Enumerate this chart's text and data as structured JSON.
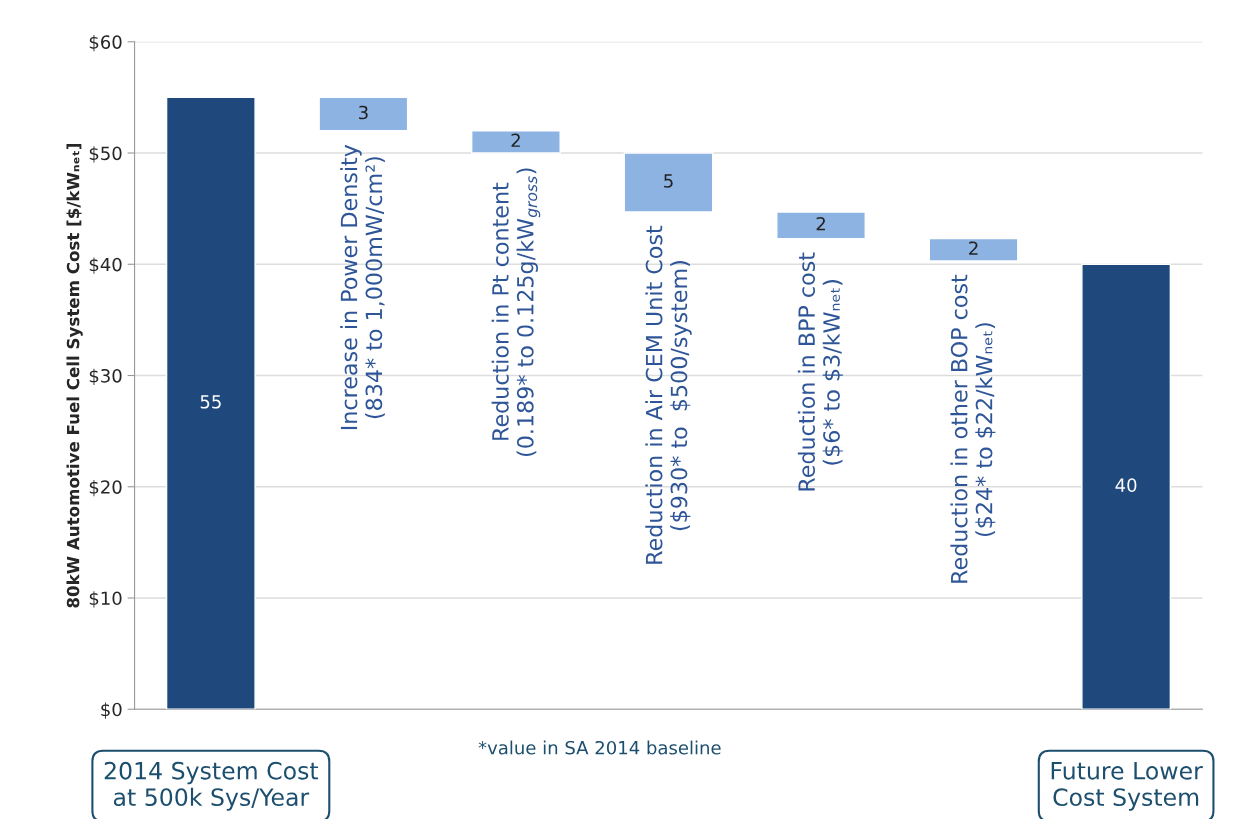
{
  "chart_data": {
    "type": "bar",
    "ylabel": "80kW Automotive Fuel Cell System Cost [$/kWₙₑₜ]",
    "categories": [
      "2014 System Cost\nat 500k Sys/Year",
      "Increase in Power Density\n(834* to 1,000mW/cm²)",
      "Reduction in Pt content\n(0.189* to 0.125g/kW$_{gross}$)",
      "Reduction in Air CEM Unit Cost\n($930* to  $500/system)",
      "Reduction in BPP cost\n($6* to $3/kWₙₑₜ)",
      "Reduction in other BOP cost\n($24* to $22/kWₙₑₜ)",
      "Future Lower\nCost System"
    ],
    "values": [
      55,
      3,
      2,
      5.3,
      2.4,
      2,
      40
    ],
    "base": [
      0,
      52,
      50,
      44.7,
      42.3,
      40.3,
      0
    ],
    "colors": [
      "#1f497d",
      "#8db3e2",
      "#8db3e2",
      "#8db3e2",
      "#8db3e2",
      "#8db3e2",
      "#1f497d"
    ],
    "value_labels": [
      "55",
      "3",
      "2",
      "5",
      "2",
      "2",
      "40"
    ],
    "ylim": [
      0,
      60
    ],
    "yticks": [
      {
        "value": 0,
        "label": "$0"
      },
      {
        "value": 10,
        "label": "$10"
      },
      {
        "value": 20,
        "label": "$20"
      },
      {
        "value": 30,
        "label": "$30"
      },
      {
        "value": 40,
        "label": "$40"
      },
      {
        "value": 50,
        "label": "$50"
      },
      {
        "value": 60,
        "label": "$60"
      }
    ],
    "grid": "y",
    "annotations": [
      "*value in SA 2014 baseline"
    ]
  }
}
